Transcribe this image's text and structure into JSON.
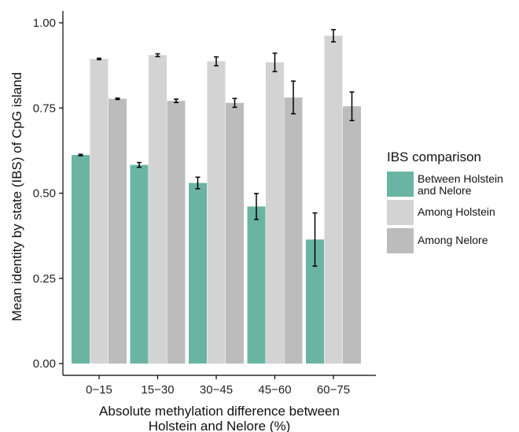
{
  "chart_data": {
    "type": "bar",
    "xlabel": "Absolute methylation difference between\nHolstein and Nelore (%)",
    "ylabel": "Mean identity by state (IBS) of CpG island",
    "ylim": [
      0,
      1
    ],
    "yticks": [
      "0.00",
      "0.25",
      "0.50",
      "0.75",
      "1.00"
    ],
    "ytick_values": [
      0,
      0.25,
      0.5,
      0.75,
      1.0
    ],
    "categories": [
      "0−15",
      "15−30",
      "30−45",
      "45−60",
      "60−75"
    ],
    "grid": false,
    "legend_position": "right",
    "legend_title": "IBS comparison",
    "series": [
      {
        "name": "Between Holstein\nand Nelore",
        "color": "#6ab4a3",
        "values": [
          0.612,
          0.583,
          0.53,
          0.461,
          0.364
        ],
        "error": [
          0.002,
          0.007,
          0.017,
          0.038,
          0.078
        ]
      },
      {
        "name": "Among Holstein",
        "color": "#d3d3d3",
        "values": [
          0.894,
          0.905,
          0.887,
          0.884,
          0.962
        ],
        "error": [
          0.002,
          0.004,
          0.013,
          0.027,
          0.018
        ]
      },
      {
        "name": "Among Nelore",
        "color": "#bcbcbc",
        "values": [
          0.777,
          0.771,
          0.765,
          0.781,
          0.755
        ],
        "error": [
          0.002,
          0.005,
          0.013,
          0.048,
          0.042
        ]
      }
    ]
  }
}
